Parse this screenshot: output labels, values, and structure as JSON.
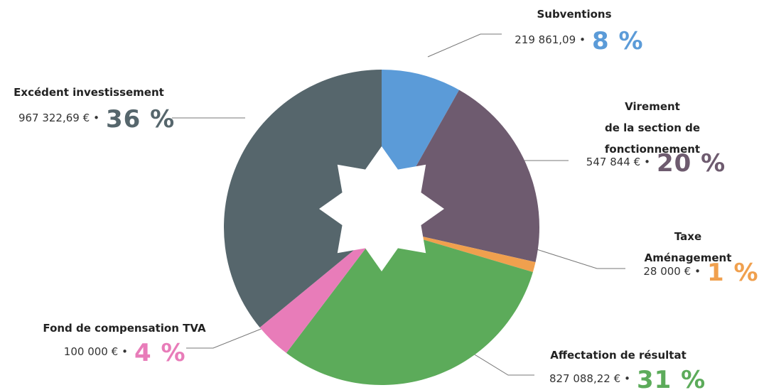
{
  "chart_data": {
    "type": "pie",
    "categories": [
      "Subventions",
      "Virement\nde la section de fonctionnement",
      "Taxe Aménagement",
      "Affectation de résultat",
      "Fond de compensation TVA",
      "Excédent investissement"
    ],
    "values": [
      219861.09,
      547844,
      28000,
      827088.22,
      100000,
      967322.69
    ],
    "value_labels": [
      "219 861,09",
      "547 844 €",
      "28 000 €",
      "827 088,22 €",
      "100 000 €",
      "967 322,69 €"
    ],
    "percent_labels": [
      "8 %",
      "20 %",
      "1 %",
      "31 %",
      "4 %",
      "36 %"
    ],
    "separator": "•",
    "colors": [
      "#5b9bd8",
      "#6e5b6f",
      "#f0a04e",
      "#5cab5a",
      "#e87cb9",
      "#56666c"
    ]
  }
}
